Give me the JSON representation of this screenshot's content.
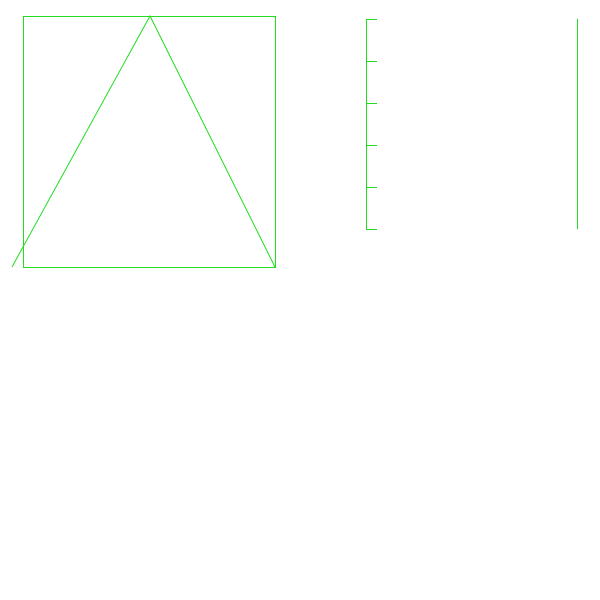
{
  "colors": {
    "background": "#ffffff",
    "stroke": "#22dd22"
  },
  "figure_a": {
    "shapes": [
      "square-outline",
      "triangle-outline"
    ]
  },
  "figure_b": {
    "tick_count": 6,
    "shapes": [
      "vertical-ruler",
      "vertical-line"
    ]
  }
}
